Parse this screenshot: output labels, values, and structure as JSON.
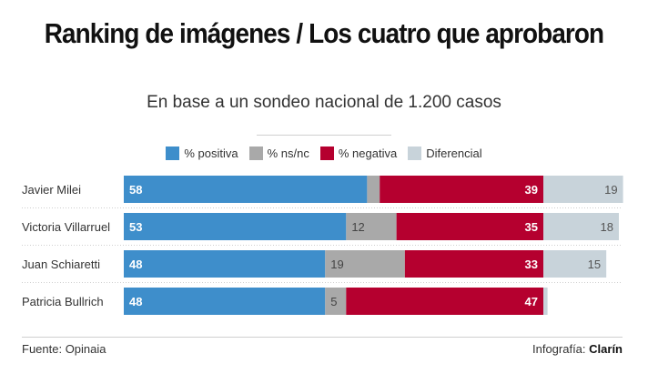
{
  "header": {
    "title": "Ranking de imágenes / Los cuatro que aprobaron",
    "subtitle": "En base a un sondeo nacional de 1.200 casos"
  },
  "footer": {
    "source": "Fuente: Opinaia",
    "credit_prefix": "Infografía:",
    "credit_brand": "Clarín"
  },
  "chart_data": {
    "type": "bar",
    "orientation": "horizontal",
    "stacked": true,
    "title": "Ranking de imágenes / Los cuatro que aprobaron",
    "subtitle": "En base a un sondeo nacional de 1.200 casos",
    "xlabel": "",
    "ylabel": "",
    "legend_position": "top",
    "grid": false,
    "categories": [
      "Javier Milei",
      "Victoria Villarruel",
      "Juan Schiaretti",
      "Patricia Bullrich"
    ],
    "series": [
      {
        "name": "% positiva",
        "color": "#3e8ecb",
        "values": [
          58,
          53,
          48,
          48
        ],
        "labels_shown": [
          true,
          true,
          true,
          true
        ]
      },
      {
        "name": "% ns/nc",
        "color": "#a9a9a9",
        "values": [
          3,
          12,
          19,
          5
        ],
        "labels_shown": [
          false,
          true,
          true,
          true
        ]
      },
      {
        "name": "% negativa",
        "color": "#b5002f",
        "values": [
          39,
          35,
          33,
          47
        ],
        "labels_shown": [
          true,
          true,
          true,
          true
        ]
      },
      {
        "name": "Diferencial",
        "color": "#c8d3da",
        "values": [
          19,
          18,
          15,
          1
        ],
        "labels_shown": [
          true,
          true,
          true,
          false
        ]
      }
    ]
  }
}
